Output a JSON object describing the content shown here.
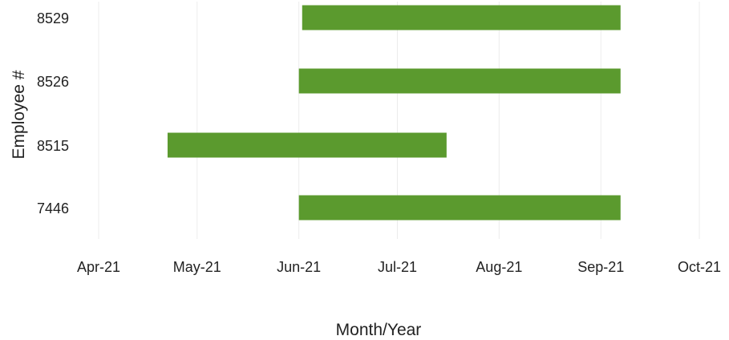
{
  "chart_data": {
    "type": "bar",
    "orientation": "horizontal",
    "xlabel": "Month/Year",
    "ylabel": "Employee #",
    "x_ticks": [
      "Apr-21",
      "May-21",
      "Jun-21",
      "Jul-21",
      "Aug-21",
      "Sep-21",
      "Oct-21"
    ],
    "x_tick_dates": [
      "2021-04-01",
      "2021-05-01",
      "2021-06-01",
      "2021-07-01",
      "2021-08-01",
      "2021-09-01",
      "2021-10-01"
    ],
    "xlim": [
      "2021-04-01",
      "2021-10-01"
    ],
    "categories": [
      "8529",
      "8526",
      "8515",
      "7446"
    ],
    "bars": [
      {
        "employee": "8529",
        "start": "2021-06-02",
        "end": "2021-09-07"
      },
      {
        "employee": "8526",
        "start": "2021-06-01",
        "end": "2021-09-07"
      },
      {
        "employee": "8515",
        "start": "2021-04-22",
        "end": "2021-07-16"
      },
      {
        "employee": "7446",
        "start": "2021-06-01",
        "end": "2021-09-07"
      }
    ],
    "bar_color": "#5b9a2e",
    "grid": true,
    "legend": "none"
  }
}
